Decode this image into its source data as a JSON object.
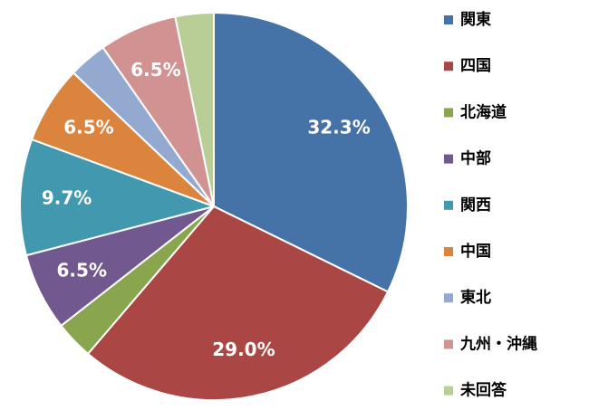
{
  "chart_data": {
    "type": "pie",
    "categories": [
      "関東",
      "四国",
      "北海道",
      "中部",
      "関西",
      "中国",
      "東北",
      "九州・沖縄",
      "未回答"
    ],
    "values": [
      32.3,
      29.0,
      3.2,
      6.5,
      9.7,
      6.5,
      3.2,
      6.5,
      3.2
    ],
    "value_labels": [
      "32.3%",
      "29.0%",
      null,
      "6.5%",
      "9.7%",
      "6.5%",
      null,
      "6.5%",
      null
    ],
    "colors": [
      "#4572a7",
      "#aa4643",
      "#89a54e",
      "#71588f",
      "#4198af",
      "#db843d",
      "#93a9cf",
      "#d19392",
      "#b9cd96"
    ],
    "legend": "right"
  }
}
